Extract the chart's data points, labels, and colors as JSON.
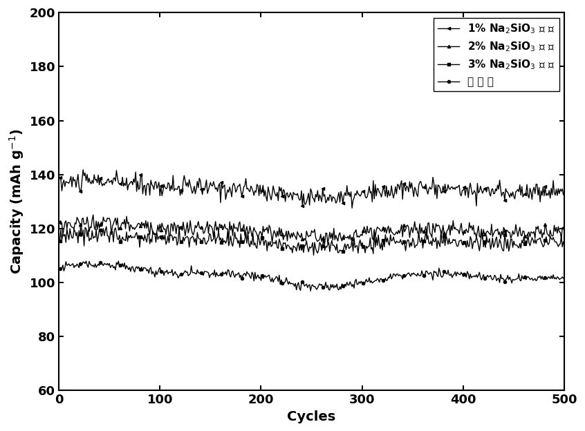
{
  "title": "",
  "xlabel": "Cycles",
  "xlim": [
    0,
    500
  ],
  "ylim": [
    60,
    200
  ],
  "xticks": [
    0,
    100,
    200,
    300,
    400,
    500
  ],
  "yticks": [
    60,
    80,
    100,
    120,
    140,
    160,
    180,
    200
  ],
  "series": [
    {
      "label_parts": [
        "1% Na",
        "2",
        "SiO",
        "3",
        " 包 覆"
      ],
      "label": "1% Na$_2$SiO$_3$ 包 覆",
      "mean": 134,
      "noise_amp": 1.8,
      "slow_amp": 3.0,
      "marker": "<",
      "color": "#000000",
      "seed": 10
    },
    {
      "label": "2% Na$_2$SiO$_3$ 包 覆",
      "mean": 119,
      "noise_amp": 1.5,
      "slow_amp": 2.5,
      "marker": "^",
      "color": "#000000",
      "seed": 20
    },
    {
      "label": "3% Na$_2$SiO$_3$ 包 覆",
      "mean": 115,
      "noise_amp": 1.5,
      "slow_amp": 2.5,
      "marker": "s",
      "color": "#000000",
      "seed": 30
    },
    {
      "label": "未 包 覆",
      "mean": 102,
      "noise_amp": 0.8,
      "slow_amp": 4.0,
      "marker": "o",
      "color": "#000000",
      "seed": 40
    }
  ],
  "n_points": 500,
  "background_color": "#ffffff",
  "legend_fontsize": 11,
  "axis_fontsize": 14,
  "tick_fontsize": 13,
  "linewidth": 1.0,
  "markersize": 3,
  "marker_interval": 20
}
